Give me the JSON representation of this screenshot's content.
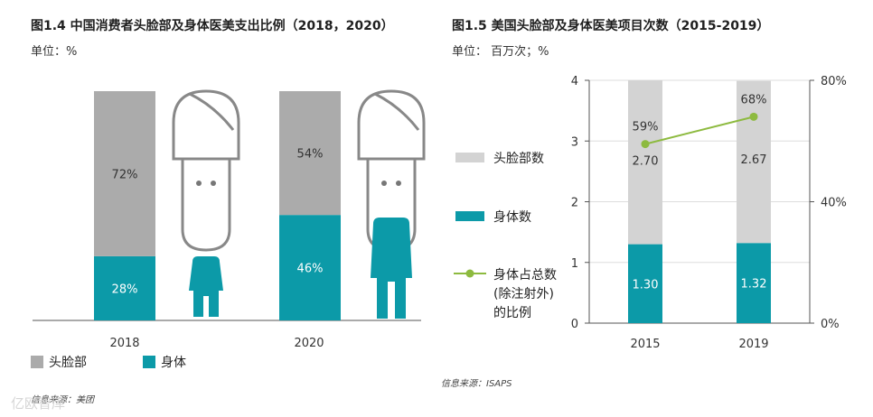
{
  "colors": {
    "gray": "#ABABAB",
    "light_gray": "#D3D3D3",
    "teal": "#0C9AA8",
    "green": "#8DBA3F",
    "axis": "#555555",
    "grid": "#DDDDDD",
    "icon_outline": "#888888"
  },
  "watermark": "亿欧智库",
  "chart_data": [
    {
      "type": "bar",
      "stacked": true,
      "title": "图1.4 中国消费者头脸部及身体医美支出比例（2018，2020）",
      "unit": "单位：%",
      "categories": [
        "2018",
        "2020"
      ],
      "series": [
        {
          "name": "身体",
          "color": "#0C9AA8",
          "values": [
            28,
            46
          ],
          "labels": [
            "28%",
            "46%"
          ]
        },
        {
          "name": "头脸部",
          "color": "#ABABAB",
          "values": [
            72,
            54
          ],
          "labels": [
            "72%",
            "54%"
          ]
        }
      ],
      "ylim": [
        0,
        100
      ],
      "legend": "bottom-left",
      "source": "信息来源：美团"
    },
    {
      "type": "bar",
      "stacked": true,
      "title": "图1.5 美国头脸部及身体医美项目次数（2015-2019）",
      "unit": "单位： 百万次；%",
      "categories": [
        "2015",
        "2019"
      ],
      "series": [
        {
          "name": "身体数",
          "color": "#0C9AA8",
          "values": [
            1.3,
            1.32
          ],
          "labels": [
            "1.30",
            "1.32"
          ]
        },
        {
          "name": "头脸部数",
          "color": "#D3D3D3",
          "values": [
            2.7,
            2.67
          ],
          "labels": [
            "2.70",
            "2.67"
          ]
        },
        {
          "name": "身体占总数(除注射外)的比例",
          "name_lines": [
            "身体占总数",
            "(除注射外)",
            "的比例"
          ],
          "type": "line",
          "axis": "right",
          "color": "#8DBA3F",
          "values": [
            59,
            68
          ],
          "labels": [
            "59%",
            "68%"
          ]
        }
      ],
      "ylim": [
        0,
        4
      ],
      "yticks": [
        "0",
        "1",
        "2",
        "3",
        "4"
      ],
      "y2lim": [
        0,
        80
      ],
      "y2ticks": [
        "0%",
        "40%",
        "80%"
      ],
      "grid": true,
      "legend": "left",
      "source": "信息来源：ISAPS"
    }
  ]
}
